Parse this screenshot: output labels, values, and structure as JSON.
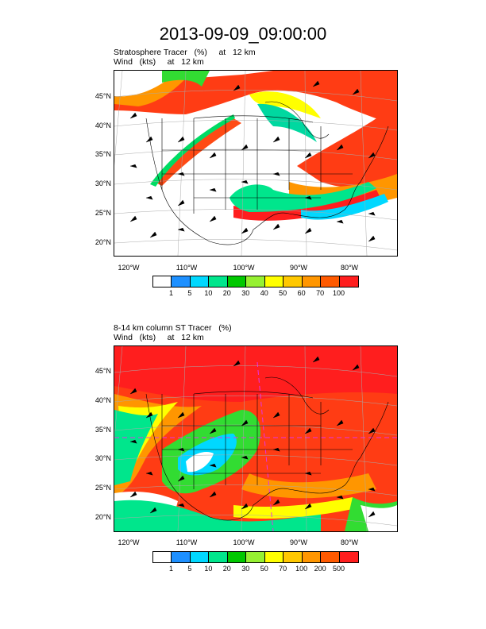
{
  "title": "2013-09-09_09:00:00",
  "panels": [
    {
      "id": "top",
      "title_line1": "Stratosphere Tracer   (%)     at   12 km",
      "title_line2": "Wind   (kts)     at   12 km",
      "lat_labels": [
        "45°N",
        "40°N",
        "35°N",
        "30°N",
        "25°N",
        "20°N"
      ],
      "lon_labels": [
        "120°W",
        "110°W",
        "100°W",
        "90°W",
        "80°W"
      ],
      "colorbar": {
        "colors": [
          "#ffffff",
          "#1e90ff",
          "#00d8ff",
          "#00e68c",
          "#00c800",
          "#96f032",
          "#ffff00",
          "#ffc800",
          "#ff9600",
          "#ff5a00",
          "#ff1e1e"
        ],
        "labels": [
          "1",
          "5",
          "10",
          "20",
          "30",
          "40",
          "50",
          "60",
          "70",
          "100"
        ]
      }
    },
    {
      "id": "bottom",
      "title_line1": "8-14 km column ST Tracer   (%)",
      "title_line2": "Wind   (kts)     at   12 km",
      "lat_labels": [
        "45°N",
        "40°N",
        "35°N",
        "30°N",
        "25°N",
        "20°N"
      ],
      "lon_labels": [
        "120°W",
        "110°W",
        "100°W",
        "90°W",
        "80°W"
      ],
      "colorbar": {
        "colors": [
          "#ffffff",
          "#1e90ff",
          "#00d8ff",
          "#00e68c",
          "#00c800",
          "#96f032",
          "#ffff00",
          "#ffc800",
          "#ff9600",
          "#ff5a00",
          "#ff1e1e"
        ],
        "labels": [
          "1",
          "5",
          "10",
          "20",
          "30",
          "50",
          "70",
          "100",
          "200",
          "500"
        ]
      }
    }
  ]
}
